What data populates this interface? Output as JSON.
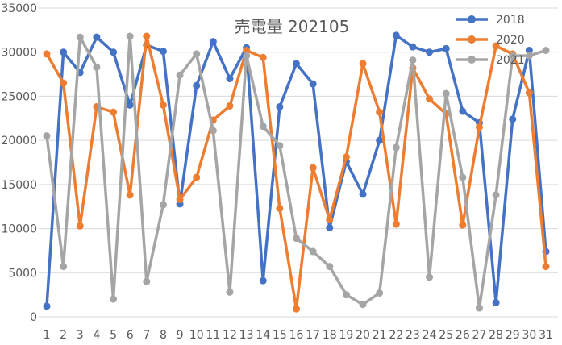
{
  "chart_data": {
    "type": "line",
    "title": "売電量 202105",
    "xlabel": "",
    "ylabel": "",
    "x": [
      1,
      2,
      3,
      4,
      5,
      6,
      7,
      8,
      9,
      10,
      11,
      12,
      13,
      14,
      15,
      16,
      17,
      18,
      19,
      20,
      21,
      22,
      23,
      24,
      25,
      26,
      27,
      28,
      29,
      30,
      31
    ],
    "ylim": [
      0,
      35000
    ],
    "yticks": [
      0,
      5000,
      10000,
      15000,
      20000,
      25000,
      30000,
      35000
    ],
    "grid": "horizontal",
    "legend_position": "top-right",
    "series": [
      {
        "name": "2018",
        "color": "#4472c4",
        "values": [
          1200,
          30000,
          27700,
          31700,
          30000,
          24000,
          30800,
          30100,
          12800,
          26200,
          31200,
          27000,
          30500,
          4100,
          23800,
          28700,
          26400,
          10100,
          17600,
          13900,
          20000,
          31900,
          30600,
          30000,
          30400,
          23300,
          22000,
          1600,
          22400,
          30200,
          7400
        ]
      },
      {
        "name": "2020",
        "color": "#ed7d31",
        "values": [
          29800,
          26500,
          10300,
          23800,
          23200,
          13800,
          31800,
          24000,
          13300,
          15800,
          22300,
          23900,
          30200,
          29400,
          12300,
          900,
          16900,
          11000,
          18100,
          28700,
          23200,
          10500,
          28200,
          24700,
          23000,
          10400,
          21500,
          30700,
          29800,
          25400,
          5700
        ]
      },
      {
        "name": "2021",
        "color": "#a5a5a5",
        "values": [
          20500,
          5700,
          31700,
          28300,
          2000,
          31800,
          4000,
          12700,
          27400,
          29800,
          21100,
          2800,
          29600,
          21600,
          19400,
          8900,
          7400,
          5700,
          2500,
          1400,
          2700,
          19200,
          29100,
          4500,
          25300,
          15800,
          1000,
          13800,
          29600,
          29600,
          30200
        ]
      }
    ]
  }
}
